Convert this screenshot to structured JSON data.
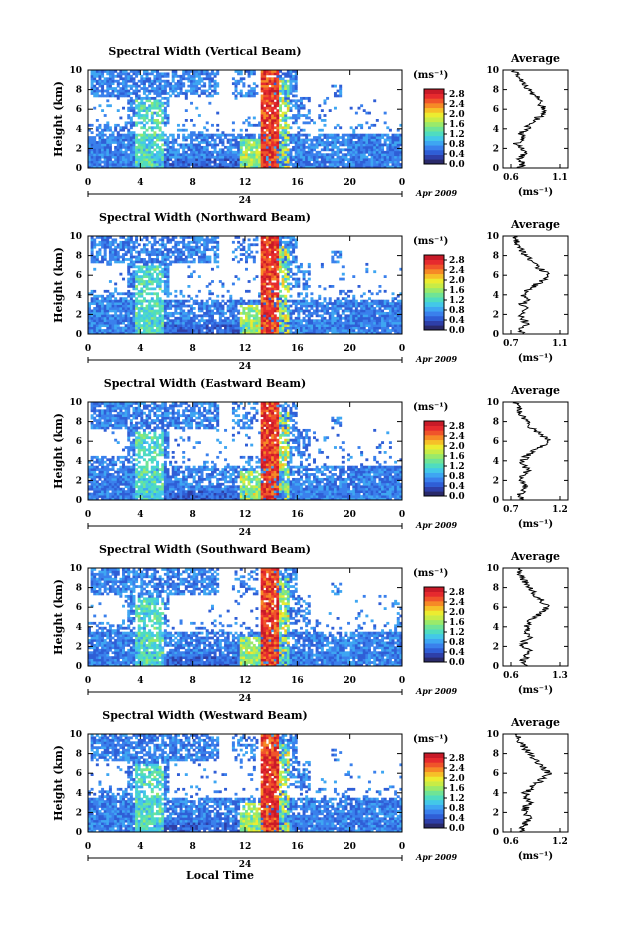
{
  "figure": {
    "xlabel": "Local Time",
    "ylabel": "Height (km)",
    "unit": "(ms⁻¹)",
    "avg_title": "Average",
    "avg_xlabel": "(ms⁻¹)",
    "date_label": "24",
    "month_label": "Apr 2009",
    "colors": [
      "#2a2a6a",
      "#2e3fa8",
      "#2f5ed6",
      "#3a80ec",
      "#3ea6f2",
      "#43c8e8",
      "#4fdcc0",
      "#6fe496",
      "#9aea6a",
      "#c8ec46",
      "#ecec30",
      "#f6c028",
      "#f68a26",
      "#f0542a",
      "#e62a2e",
      "#c81a28"
    ]
  },
  "chart_data": [
    {
      "type": "heatmap",
      "title": "Spectral Width (Vertical Beam)",
      "xlabel": "Local Time",
      "ylabel": "Height (km)",
      "x_ticks": [
        "0",
        "4",
        "8",
        "12",
        "16",
        "20",
        "0"
      ],
      "y_ticks": [
        "0",
        "2",
        "4",
        "6",
        "8",
        "10"
      ],
      "xlim": [
        0,
        24
      ],
      "ylim": [
        0,
        10
      ],
      "colorbar": {
        "label": "(ms⁻¹)",
        "ticks": [
          "0.0",
          "0.4",
          "0.8",
          "1.2",
          "1.6",
          "2.0",
          "2.4",
          "2.8"
        ],
        "range": [
          0,
          3.0
        ]
      },
      "average_profile": {
        "title": "Average",
        "xlabel": "(ms⁻¹)",
        "x_ticks": [
          "0.6",
          "1.1"
        ],
        "xlim": [
          0.6,
          1.1
        ],
        "y_ticks": [
          "0",
          "2",
          "4",
          "6",
          "8",
          "10"
        ],
        "height": [
          0,
          0.5,
          1,
          1.5,
          2,
          2.5,
          3,
          3.5,
          4,
          4.5,
          5,
          5.5,
          6,
          6.5,
          7,
          7.5,
          8,
          8.5,
          9,
          9.5,
          10
        ],
        "value": [
          0.68,
          0.72,
          0.68,
          0.75,
          0.7,
          0.66,
          0.74,
          0.7,
          0.76,
          0.8,
          0.86,
          0.92,
          0.95,
          0.9,
          0.88,
          0.84,
          0.78,
          0.74,
          0.7,
          0.66,
          0.64
        ]
      }
    },
    {
      "type": "heatmap",
      "title": "Spectral Width (Northward Beam)",
      "xlabel": "Local Time",
      "ylabel": "Height (km)",
      "x_ticks": [
        "0",
        "4",
        "8",
        "12",
        "16",
        "20",
        "0"
      ],
      "y_ticks": [
        "0",
        "2",
        "4",
        "6",
        "8",
        "10"
      ],
      "xlim": [
        0,
        24
      ],
      "ylim": [
        0,
        10
      ],
      "colorbar": {
        "label": "(ms⁻¹)",
        "ticks": [
          "0.0",
          "0.4",
          "0.8",
          "1.2",
          "1.6",
          "2.0",
          "2.4",
          "2.8"
        ],
        "range": [
          0,
          3.0
        ]
      },
      "average_profile": {
        "title": "Average",
        "xlabel": "(ms⁻¹)",
        "x_ticks": [
          "0.7",
          "1.1"
        ],
        "xlim": [
          0.7,
          1.1
        ],
        "y_ticks": [
          "0",
          "2",
          "4",
          "6",
          "8",
          "10"
        ],
        "height": [
          0,
          0.5,
          1,
          1.5,
          2,
          2.5,
          3,
          3.5,
          4,
          4.5,
          5,
          5.5,
          6,
          6.5,
          7,
          7.5,
          8,
          8.5,
          9,
          9.5,
          10
        ],
        "value": [
          0.8,
          0.78,
          0.84,
          0.8,
          0.76,
          0.82,
          0.78,
          0.86,
          0.8,
          0.84,
          0.9,
          0.96,
          1.02,
          0.96,
          0.9,
          0.86,
          0.82,
          0.78,
          0.76,
          0.74,
          0.72
        ]
      }
    },
    {
      "type": "heatmap",
      "title": "Spectral Width (Eastward Beam)",
      "xlabel": "Local Time",
      "ylabel": "Height (km)",
      "x_ticks": [
        "0",
        "4",
        "8",
        "12",
        "16",
        "20",
        "0"
      ],
      "y_ticks": [
        "0",
        "2",
        "4",
        "6",
        "8",
        "10"
      ],
      "xlim": [
        0,
        24
      ],
      "ylim": [
        0,
        10
      ],
      "colorbar": {
        "label": "(ms⁻¹)",
        "ticks": [
          "0.0",
          "0.4",
          "0.8",
          "1.2",
          "1.6",
          "2.0",
          "2.4",
          "2.8"
        ],
        "range": [
          0,
          3.0
        ]
      },
      "average_profile": {
        "title": "Average",
        "xlabel": "(ms⁻¹)",
        "x_ticks": [
          "0.7",
          "1.2"
        ],
        "xlim": [
          0.7,
          1.2
        ],
        "y_ticks": [
          "0",
          "2",
          "4",
          "6",
          "8",
          "10"
        ],
        "height": [
          0,
          0.5,
          1,
          1.5,
          2,
          2.5,
          3,
          3.5,
          4,
          4.5,
          5,
          5.5,
          6,
          6.5,
          7,
          7.5,
          8,
          8.5,
          9,
          9.5,
          10
        ],
        "value": [
          0.8,
          0.78,
          0.84,
          0.86,
          0.8,
          0.82,
          0.88,
          0.84,
          0.82,
          0.86,
          0.94,
          1.02,
          1.08,
          1.04,
          0.96,
          0.9,
          0.86,
          0.82,
          0.78,
          0.76,
          0.74
        ]
      }
    },
    {
      "type": "heatmap",
      "title": "Spectral Width (Southward Beam)",
      "xlabel": "Local Time",
      "ylabel": "Height (km)",
      "x_ticks": [
        "0",
        "4",
        "8",
        "12",
        "16",
        "20",
        "0"
      ],
      "y_ticks": [
        "0",
        "2",
        "4",
        "6",
        "8",
        "10"
      ],
      "xlim": [
        0,
        24
      ],
      "ylim": [
        0,
        10
      ],
      "colorbar": {
        "label": "(ms⁻¹)",
        "ticks": [
          "0.0",
          "0.4",
          "0.8",
          "1.2",
          "1.6",
          "2.0",
          "2.4",
          "2.8"
        ],
        "range": [
          0,
          3.0
        ]
      },
      "average_profile": {
        "title": "Average",
        "xlabel": "(ms⁻¹)",
        "x_ticks": [
          "0.6",
          "1.3"
        ],
        "xlim": [
          0.6,
          1.3
        ],
        "y_ticks": [
          "0",
          "2",
          "4",
          "6",
          "8",
          "10"
        ],
        "height": [
          0,
          0.5,
          1,
          1.5,
          2,
          2.5,
          3,
          3.5,
          4,
          4.5,
          5,
          5.5,
          6,
          6.5,
          7,
          7.5,
          8,
          8.5,
          9,
          9.5,
          10
        ],
        "value": [
          0.78,
          0.76,
          0.82,
          0.86,
          0.78,
          0.8,
          0.86,
          0.82,
          0.8,
          0.86,
          0.94,
          1.04,
          1.12,
          1.06,
          0.98,
          0.92,
          0.86,
          0.8,
          0.76,
          0.72,
          0.7
        ]
      }
    },
    {
      "type": "heatmap",
      "title": "Spectral Width (Westward Beam)",
      "xlabel": "Local Time",
      "ylabel": "Height (km)",
      "x_ticks": [
        "0",
        "4",
        "8",
        "12",
        "16",
        "20",
        "0"
      ],
      "y_ticks": [
        "0",
        "2",
        "4",
        "6",
        "8",
        "10"
      ],
      "xlim": [
        0,
        24
      ],
      "ylim": [
        0,
        10
      ],
      "colorbar": {
        "label": "(ms⁻¹)",
        "ticks": [
          "0.0",
          "0.4",
          "0.8",
          "1.2",
          "1.6",
          "2.0",
          "2.4",
          "2.8"
        ],
        "range": [
          0,
          3.0
        ]
      },
      "average_profile": {
        "title": "Average",
        "xlabel": "(ms⁻¹)",
        "x_ticks": [
          "0.6",
          "1.2"
        ],
        "xlim": [
          0.6,
          1.2
        ],
        "y_ticks": [
          "0",
          "2",
          "4",
          "6",
          "8",
          "10"
        ],
        "height": [
          0,
          0.5,
          1,
          1.5,
          2,
          2.5,
          3,
          3.5,
          4,
          4.5,
          5,
          5.5,
          6,
          6.5,
          7,
          7.5,
          8,
          8.5,
          9,
          9.5,
          10
        ],
        "value": [
          0.76,
          0.74,
          0.8,
          0.84,
          0.76,
          0.78,
          0.82,
          0.8,
          0.78,
          0.84,
          0.92,
          1.0,
          1.06,
          1.0,
          0.94,
          0.88,
          0.82,
          0.78,
          0.74,
          0.7,
          0.68
        ]
      }
    }
  ]
}
